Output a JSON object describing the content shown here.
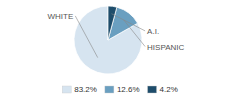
{
  "chart_data": {
    "type": "pie",
    "categories": [
      "WHITE",
      "HISPANIC",
      "A.I."
    ],
    "values": [
      83.2,
      12.6,
      4.2
    ],
    "value_labels": [
      "83.2%",
      "12.6%",
      "4.2%"
    ],
    "colors": [
      "#d6e4f0",
      "#6a9fc0",
      "#1e4d6b"
    ],
    "legend": "bottom"
  }
}
